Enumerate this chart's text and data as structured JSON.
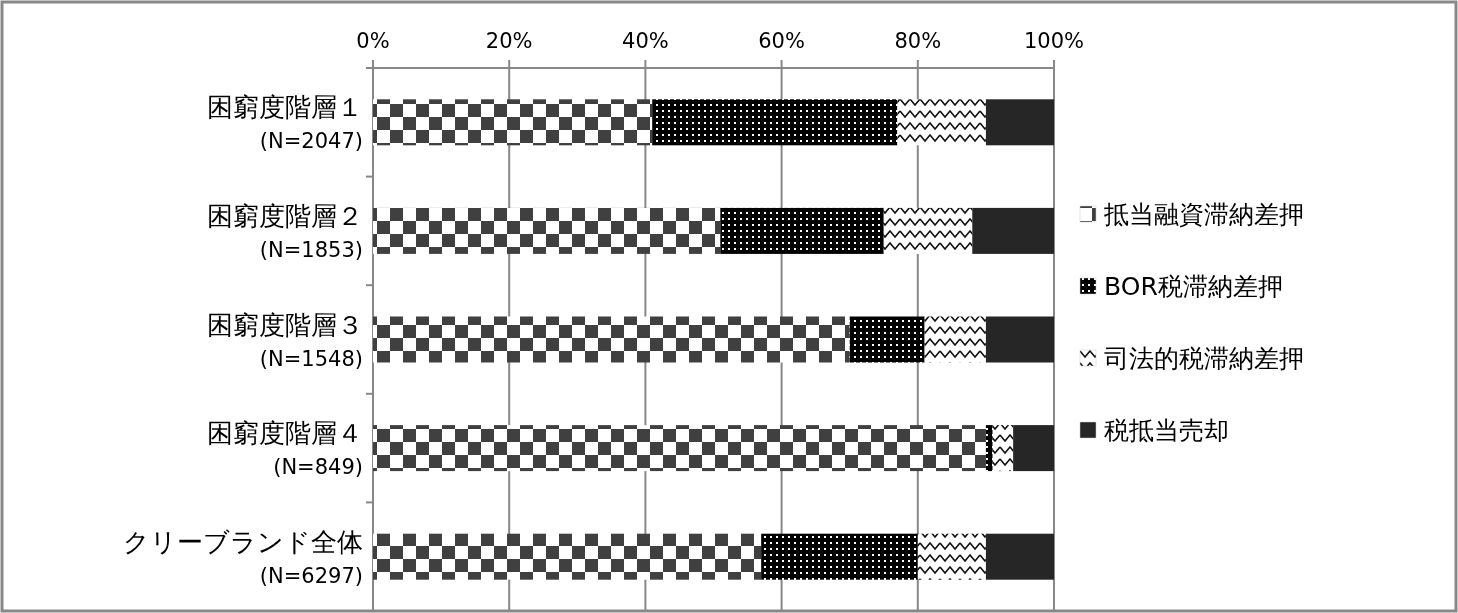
{
  "chart_data": {
    "type": "bar",
    "orientation": "horizontal",
    "stacked": true,
    "categories": [
      "困窮度階層１\n(N=2047)",
      "困窮度階層２\n(N=1853)",
      "困窮度階層３\n(N=1548)",
      "困窮度階層４\n(N=849)",
      "クリーブランド全体\n(N=6297)"
    ],
    "series": [
      {
        "name": "抵当融資滞納差押",
        "color": "#404040",
        "values": [
          41,
          51,
          70,
          90,
          57
        ]
      },
      {
        "name": "BOR税滞納差押",
        "color": "#000000",
        "values": [
          36,
          24,
          11,
          1,
          23
        ]
      },
      {
        "name": "司法的税滞納差押",
        "color": "#111111",
        "values": [
          13,
          13,
          9,
          3,
          10
        ]
      },
      {
        "name": "税抵当売却",
        "color": "#262626",
        "values": [
          10,
          12,
          10,
          6,
          10
        ]
      }
    ],
    "xlim": [
      0,
      100
    ],
    "xticks": [
      {
        "value": 0,
        "label": "0%"
      },
      {
        "value": 20,
        "label": "20%"
      },
      {
        "value": 40,
        "label": "40%"
      },
      {
        "value": 60,
        "label": "60%"
      },
      {
        "value": 80,
        "label": "80%"
      },
      {
        "value": 100,
        "label": "100%"
      }
    ],
    "grid": "x",
    "legend": "right"
  }
}
